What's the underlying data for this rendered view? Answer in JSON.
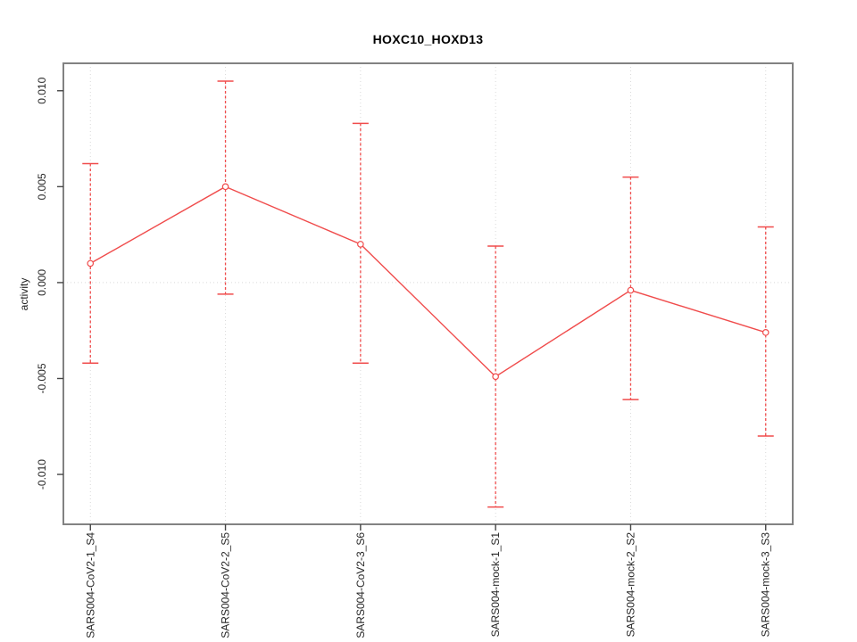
{
  "chart_data": {
    "type": "line",
    "title": "HOXC10_HOXD13",
    "xlabel": "",
    "ylabel": "activity",
    "categories": [
      "SARS004-CoV2-1_S4",
      "SARS004-CoV2-2_S5",
      "SARS004-CoV2-3_S6",
      "SARS004-mock-1_S1",
      "SARS004-mock-2_S2",
      "SARS004-mock-3_S3"
    ],
    "series": [
      {
        "name": "activity",
        "values": [
          0.001,
          0.005,
          0.002,
          -0.0049,
          -0.0004,
          -0.0026
        ],
        "error_lower": [
          -0.0042,
          -0.0006,
          -0.0042,
          -0.0117,
          -0.0061,
          -0.008
        ],
        "error_upper": [
          0.0062,
          0.0105,
          0.0083,
          0.0019,
          0.0055,
          0.0029
        ]
      }
    ],
    "yticks": {
      "labels": [
        "0.010",
        "0.005",
        "0.000",
        "-0.005",
        "-0.010"
      ],
      "values": [
        0.01,
        0.005,
        0.0,
        -0.005,
        -0.01
      ]
    },
    "ylim": [
      -0.0126,
      0.01143
    ],
    "xlim": [
      0.8,
      6.2
    ],
    "grid": {
      "vertical_dotted_at_each_category": true,
      "horizontal_dotted_at_zero": true,
      "other_horizontal_gridlines": false
    },
    "legend": "none",
    "marker": "open-circle",
    "error_bar_style": "dashed-stem-with-end-caps",
    "label_orientation": "x and y tick labels rotated 90deg (read bottom-to-top)",
    "colors": {
      "line": "#f04c4c",
      "marker_fill": "#ffffff",
      "box": "#828282",
      "grid": "#d9d9d9",
      "tick": "#454545",
      "text": "#262626",
      "title": "#000000",
      "background": "#ffffff"
    }
  }
}
